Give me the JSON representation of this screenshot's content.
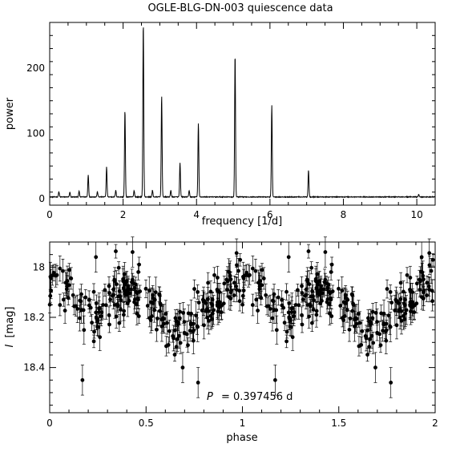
{
  "title": "OGLE-BLG-DN-003 quiescence data",
  "chart_data": [
    {
      "type": "line",
      "title": "OGLE-BLG-DN-003 quiescence data",
      "xlabel": "frequency [1/d]",
      "ylabel": "power",
      "xlim": [
        0,
        10.5
      ],
      "ylim": [
        -10,
        270
      ],
      "xticks": [
        0,
        2,
        4,
        6,
        8,
        10
      ],
      "xtick_labels": [
        "0",
        "2",
        "4",
        "6",
        "8",
        "10"
      ],
      "yticks": [
        0,
        100,
        200
      ],
      "ytick_labels": [
        "0",
        "100",
        "200"
      ],
      "baseline": 2,
      "peaks": [
        {
          "x": 0.25,
          "y": 8
        },
        {
          "x": 0.55,
          "y": 7
        },
        {
          "x": 0.8,
          "y": 9
        },
        {
          "x": 1.05,
          "y": 34
        },
        {
          "x": 1.3,
          "y": 8
        },
        {
          "x": 1.55,
          "y": 46
        },
        {
          "x": 1.8,
          "y": 10
        },
        {
          "x": 2.05,
          "y": 133
        },
        {
          "x": 2.3,
          "y": 10
        },
        {
          "x": 2.55,
          "y": 267
        },
        {
          "x": 2.8,
          "y": 10
        },
        {
          "x": 3.05,
          "y": 155
        },
        {
          "x": 3.3,
          "y": 10
        },
        {
          "x": 3.55,
          "y": 52
        },
        {
          "x": 3.8,
          "y": 10
        },
        {
          "x": 4.05,
          "y": 113
        },
        {
          "x": 5.05,
          "y": 219
        },
        {
          "x": 6.05,
          "y": 140
        },
        {
          "x": 7.05,
          "y": 41
        },
        {
          "x": 10.05,
          "y": 4
        }
      ]
    },
    {
      "type": "scatter",
      "xlabel": "phase",
      "ylabel": "I [mag]",
      "ylabel_symbol": "I",
      "ylabel_unit": "[mag]",
      "xlim": [
        0,
        2
      ],
      "ylim": [
        18.58,
        17.9
      ],
      "y_inverted": true,
      "xticks": [
        0,
        0.5,
        1,
        1.5,
        2
      ],
      "xtick_labels": [
        "0",
        "0.5",
        "1",
        "1.5",
        "2"
      ],
      "yticks": [
        18,
        18.2,
        18.4
      ],
      "ytick_labels": [
        "18",
        "18.2",
        "18.4"
      ],
      "annotation": {
        "symbol": "P",
        "text": "= 0.397456 d"
      },
      "error_bars": true,
      "light_curve": {
        "phase_points": [
          0.0,
          0.1,
          0.2,
          0.3,
          0.4,
          0.5,
          0.6,
          0.7,
          0.8,
          0.9,
          1.0
        ],
        "mean_mag": [
          18.04,
          18.08,
          18.21,
          18.16,
          18.09,
          18.13,
          18.22,
          18.27,
          18.18,
          18.07,
          18.04
        ],
        "scatter_mag": 0.05,
        "typical_error": 0.04
      },
      "outliers": [
        {
          "x": 0.17,
          "y": 18.45
        },
        {
          "x": 0.24,
          "y": 17.96
        },
        {
          "x": 0.43,
          "y": 17.94
        },
        {
          "x": 0.55,
          "y": 18.1
        },
        {
          "x": 0.69,
          "y": 18.4
        },
        {
          "x": 0.77,
          "y": 18.46
        },
        {
          "x": 1.17,
          "y": 18.45
        },
        {
          "x": 1.24,
          "y": 17.96
        },
        {
          "x": 1.43,
          "y": 17.94
        },
        {
          "x": 1.69,
          "y": 18.4
        },
        {
          "x": 1.77,
          "y": 18.46
        },
        {
          "x": 1.93,
          "y": 17.96
        }
      ]
    }
  ]
}
